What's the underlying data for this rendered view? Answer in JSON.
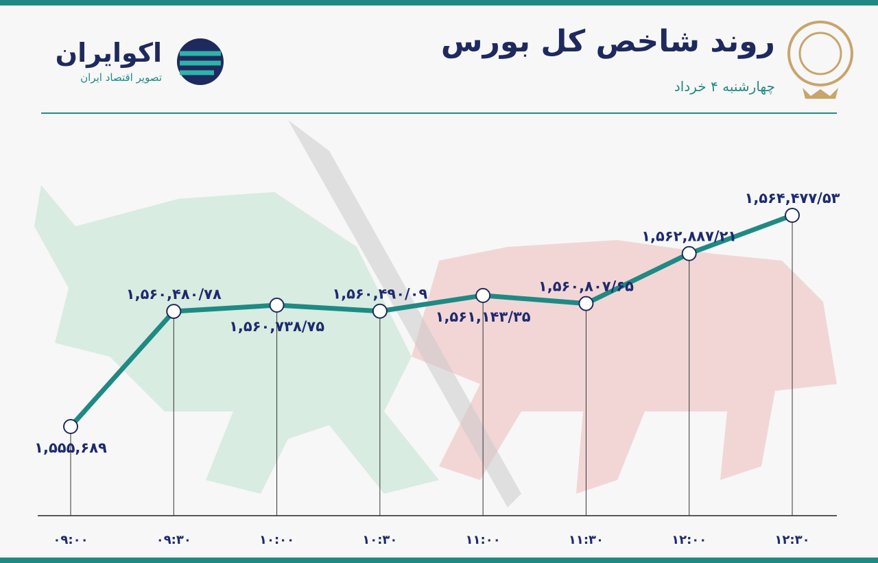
{
  "chart_data": {
    "type": "line",
    "title": "روند شاخص کل بورس",
    "subtitle": "چهارشنبه ۴ خرداد",
    "categories": [
      "۰۹:۰۰",
      "۰۹:۳۰",
      "۱۰:۰۰",
      "۱۰:۳۰",
      "۱۱:۰۰",
      "۱۱:۳۰",
      "۱۲:۰۰",
      "۱۲:۳۰"
    ],
    "series": [
      {
        "name": "شاخص کل",
        "color": "#1f8a84",
        "values": [
          1555689,
          1560480.78,
          1560738.75,
          1560490.09,
          1561143.35,
          1560807.65,
          1562887.21,
          1564477.53
        ],
        "value_labels": [
          "۱,۵۵۵,۶۸۹",
          "۱,۵۶۰,۴۸۰/۷۸",
          "۱,۵۶۰,۷۳۸/۷۵",
          "۱,۵۶۰,۴۹۰/۰۹",
          "۱,۵۶۱,۱۴۳/۳۵",
          "۱,۵۶۰,۸۰۷/۶۵",
          "۱,۵۶۲,۸۸۷/۲۱",
          "۱,۵۶۴,۴۷۷/۵۳"
        ]
      }
    ]
  },
  "brand": {
    "name": "اکوایران",
    "tagline": "تصویر اقتصاد ایران"
  }
}
